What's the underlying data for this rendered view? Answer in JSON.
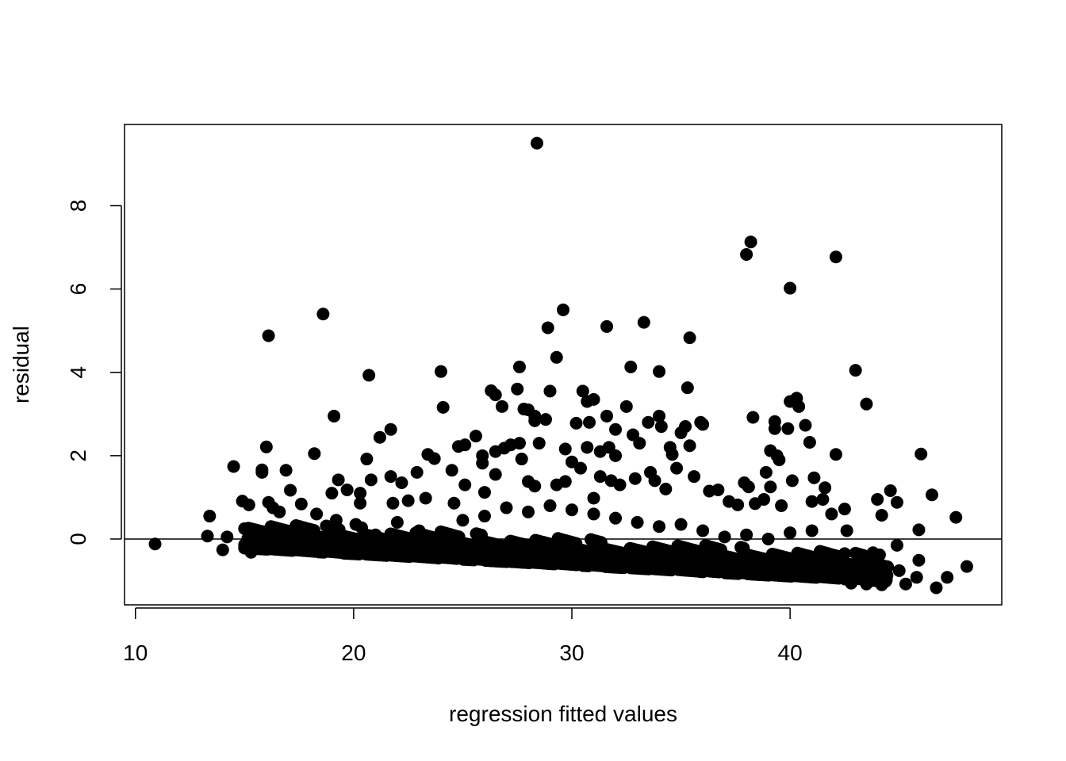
{
  "chart_data": {
    "type": "scatter",
    "title": "",
    "xlabel": "regression fitted values",
    "ylabel": "residual",
    "xlim": [
      9.5,
      49.7
    ],
    "ylim": [
      -1.58,
      9.95
    ],
    "xticks": [
      10,
      20,
      30,
      40
    ],
    "yticks": [
      0,
      2,
      4,
      6,
      8
    ],
    "xtick_labels": [
      "10",
      "20",
      "30",
      "40"
    ],
    "ytick_labels": [
      "0",
      "2",
      "4",
      "6",
      "8"
    ],
    "reference_line_y": 0,
    "grid": false,
    "legend": "none",
    "marker_color": "#000000",
    "series": [
      {
        "values": [
          [
            10.9,
            -0.12
          ],
          [
            13.4,
            0.55
          ],
          [
            13.3,
            0.07
          ],
          [
            14.0,
            -0.26
          ],
          [
            14.2,
            0.05
          ],
          [
            14.5,
            1.74
          ],
          [
            14.9,
            0.91
          ],
          [
            15.0,
            0.25
          ],
          [
            15.0,
            -0.14
          ],
          [
            15.2,
            0.82
          ],
          [
            15.3,
            -0.32
          ],
          [
            15.8,
            1.66
          ],
          [
            15.8,
            1.6
          ],
          [
            16.0,
            2.21
          ],
          [
            16.1,
            4.88
          ],
          [
            16.1,
            0.88
          ],
          [
            16.3,
            0.75
          ],
          [
            16.6,
            0.65
          ],
          [
            16.9,
            1.65
          ],
          [
            17.1,
            1.17
          ],
          [
            17.6,
            0.84
          ],
          [
            18.2,
            2.05
          ],
          [
            18.3,
            0.6
          ],
          [
            18.6,
            5.4
          ],
          [
            19.1,
            2.95
          ],
          [
            19.3,
            1.42
          ],
          [
            19.0,
            1.1
          ],
          [
            19.7,
            1.18
          ],
          [
            20.3,
            1.1
          ],
          [
            20.3,
            0.86
          ],
          [
            20.6,
            1.92
          ],
          [
            20.7,
            3.93
          ],
          [
            20.8,
            1.42
          ],
          [
            21.2,
            2.44
          ],
          [
            21.7,
            2.63
          ],
          [
            21.7,
            1.5
          ],
          [
            21.8,
            0.86
          ],
          [
            22.2,
            1.35
          ],
          [
            22.5,
            0.92
          ],
          [
            22.9,
            1.6
          ],
          [
            23.3,
            0.98
          ],
          [
            23.4,
            2.03
          ],
          [
            23.7,
            1.93
          ],
          [
            24.0,
            4.02
          ],
          [
            24.1,
            3.16
          ],
          [
            24.5,
            1.65
          ],
          [
            24.6,
            0.86
          ],
          [
            24.8,
            2.22
          ],
          [
            25.1,
            2.26
          ],
          [
            25.1,
            1.3
          ],
          [
            25.6,
            2.47
          ],
          [
            25.9,
            2.0
          ],
          [
            25.9,
            1.82
          ],
          [
            26.0,
            1.12
          ],
          [
            26.3,
            3.56
          ],
          [
            26.5,
            3.46
          ],
          [
            26.5,
            2.1
          ],
          [
            26.5,
            1.55
          ],
          [
            26.8,
            3.18
          ],
          [
            26.9,
            2.18
          ],
          [
            27.2,
            2.26
          ],
          [
            27.5,
            3.6
          ],
          [
            27.6,
            4.13
          ],
          [
            27.6,
            2.3
          ],
          [
            27.7,
            1.92
          ],
          [
            27.8,
            3.12
          ],
          [
            28.0,
            3.1
          ],
          [
            28.0,
            1.38
          ],
          [
            28.3,
            1.27
          ],
          [
            28.3,
            2.95
          ],
          [
            28.3,
            2.84
          ],
          [
            28.4,
            9.5
          ],
          [
            28.5,
            2.3
          ],
          [
            28.8,
            2.87
          ],
          [
            28.9,
            5.07
          ],
          [
            29.0,
            3.55
          ],
          [
            29.3,
            4.36
          ],
          [
            29.3,
            1.3
          ],
          [
            29.6,
            5.5
          ],
          [
            29.7,
            1.38
          ],
          [
            29.7,
            2.16
          ],
          [
            30.0,
            1.85
          ],
          [
            30.2,
            2.78
          ],
          [
            30.4,
            1.7
          ],
          [
            30.5,
            3.55
          ],
          [
            30.7,
            3.3
          ],
          [
            30.7,
            2.2
          ],
          [
            30.8,
            2.8
          ],
          [
            31.0,
            3.35
          ],
          [
            31.0,
            0.98
          ],
          [
            31.3,
            2.1
          ],
          [
            31.3,
            1.5
          ],
          [
            31.6,
            5.1
          ],
          [
            31.6,
            2.95
          ],
          [
            31.7,
            2.2
          ],
          [
            31.8,
            1.4
          ],
          [
            32.0,
            2.63
          ],
          [
            32.0,
            2.0
          ],
          [
            32.2,
            1.3
          ],
          [
            32.5,
            3.18
          ],
          [
            32.7,
            4.13
          ],
          [
            32.8,
            2.5
          ],
          [
            32.9,
            1.45
          ],
          [
            33.1,
            2.3
          ],
          [
            33.3,
            5.2
          ],
          [
            33.5,
            2.8
          ],
          [
            33.6,
            1.6
          ],
          [
            33.8,
            1.4
          ],
          [
            34.0,
            2.95
          ],
          [
            34.0,
            4.02
          ],
          [
            34.1,
            2.7
          ],
          [
            34.3,
            1.2
          ],
          [
            34.5,
            2.2
          ],
          [
            34.6,
            2.03
          ],
          [
            34.8,
            1.7
          ],
          [
            35.0,
            2.55
          ],
          [
            35.2,
            2.7
          ],
          [
            35.3,
            3.63
          ],
          [
            35.4,
            2.24
          ],
          [
            35.4,
            4.83
          ],
          [
            35.6,
            1.5
          ],
          [
            35.9,
            2.8
          ],
          [
            36.0,
            2.75
          ],
          [
            36.3,
            1.15
          ],
          [
            36.7,
            1.18
          ],
          [
            37.2,
            0.9
          ],
          [
            37.6,
            0.82
          ],
          [
            37.9,
            1.35
          ],
          [
            38.0,
            6.83
          ],
          [
            38.1,
            1.25
          ],
          [
            38.2,
            7.13
          ],
          [
            38.3,
            2.92
          ],
          [
            38.4,
            0.85
          ],
          [
            38.8,
            0.95
          ],
          [
            38.9,
            1.6
          ],
          [
            39.1,
            2.12
          ],
          [
            39.1,
            1.25
          ],
          [
            39.3,
            2.82
          ],
          [
            39.3,
            2.65
          ],
          [
            39.4,
            2.0
          ],
          [
            39.5,
            1.9
          ],
          [
            39.6,
            0.8
          ],
          [
            39.9,
            2.65
          ],
          [
            40.0,
            6.02
          ],
          [
            40.0,
            3.3
          ],
          [
            40.1,
            1.4
          ],
          [
            40.3,
            3.38
          ],
          [
            40.4,
            3.18
          ],
          [
            40.7,
            2.73
          ],
          [
            40.9,
            2.32
          ],
          [
            41.0,
            0.9
          ],
          [
            41.1,
            1.47
          ],
          [
            41.5,
            0.95
          ],
          [
            41.6,
            1.23
          ],
          [
            41.9,
            0.6
          ],
          [
            42.1,
            6.77
          ],
          [
            42.1,
            2.03
          ],
          [
            42.5,
            0.72
          ],
          [
            43.0,
            4.05
          ],
          [
            43.5,
            3.24
          ],
          [
            44.0,
            0.95
          ],
          [
            44.2,
            0.57
          ],
          [
            44.6,
            1.16
          ],
          [
            44.9,
            0.88
          ],
          [
            46.0,
            2.04
          ],
          [
            45.9,
            0.22
          ],
          [
            46.5,
            1.06
          ],
          [
            47.6,
            0.52
          ],
          [
            44.9,
            -0.15
          ],
          [
            45.9,
            -0.51
          ],
          [
            45.0,
            -0.76
          ],
          [
            45.8,
            -0.92
          ],
          [
            45.3,
            -1.08
          ],
          [
            46.7,
            -1.17
          ],
          [
            47.2,
            -0.92
          ],
          [
            48.1,
            -0.66
          ],
          [
            44.2,
            -1.1
          ],
          [
            43.8,
            -0.33
          ],
          [
            44.1,
            -0.38
          ],
          [
            43.5,
            -1.08
          ],
          [
            42.8,
            -1.06
          ],
          [
            42.6,
            0.2
          ],
          [
            42.5,
            -0.35
          ],
          [
            17.0,
            0.05
          ],
          [
            18.0,
            -0.05
          ],
          [
            19.2,
            0.45
          ],
          [
            20.1,
            0.35
          ],
          [
            21.0,
            0.1
          ],
          [
            22.0,
            0.4
          ],
          [
            23.0,
            0.2
          ],
          [
            24.0,
            0.1
          ],
          [
            25.0,
            0.45
          ],
          [
            26.0,
            0.55
          ],
          [
            27.0,
            0.75
          ],
          [
            28.0,
            0.65
          ],
          [
            29.0,
            0.8
          ],
          [
            30.0,
            0.7
          ],
          [
            31.0,
            0.6
          ],
          [
            32.0,
            0.5
          ],
          [
            33.0,
            0.4
          ],
          [
            34.0,
            0.3
          ],
          [
            35.0,
            0.35
          ],
          [
            36.0,
            0.2
          ],
          [
            37.0,
            0.05
          ],
          [
            38.0,
            0.1
          ],
          [
            39.0,
            0.0
          ],
          [
            40.0,
            0.15
          ],
          [
            41.0,
            0.2
          ]
        ]
      }
    ]
  }
}
